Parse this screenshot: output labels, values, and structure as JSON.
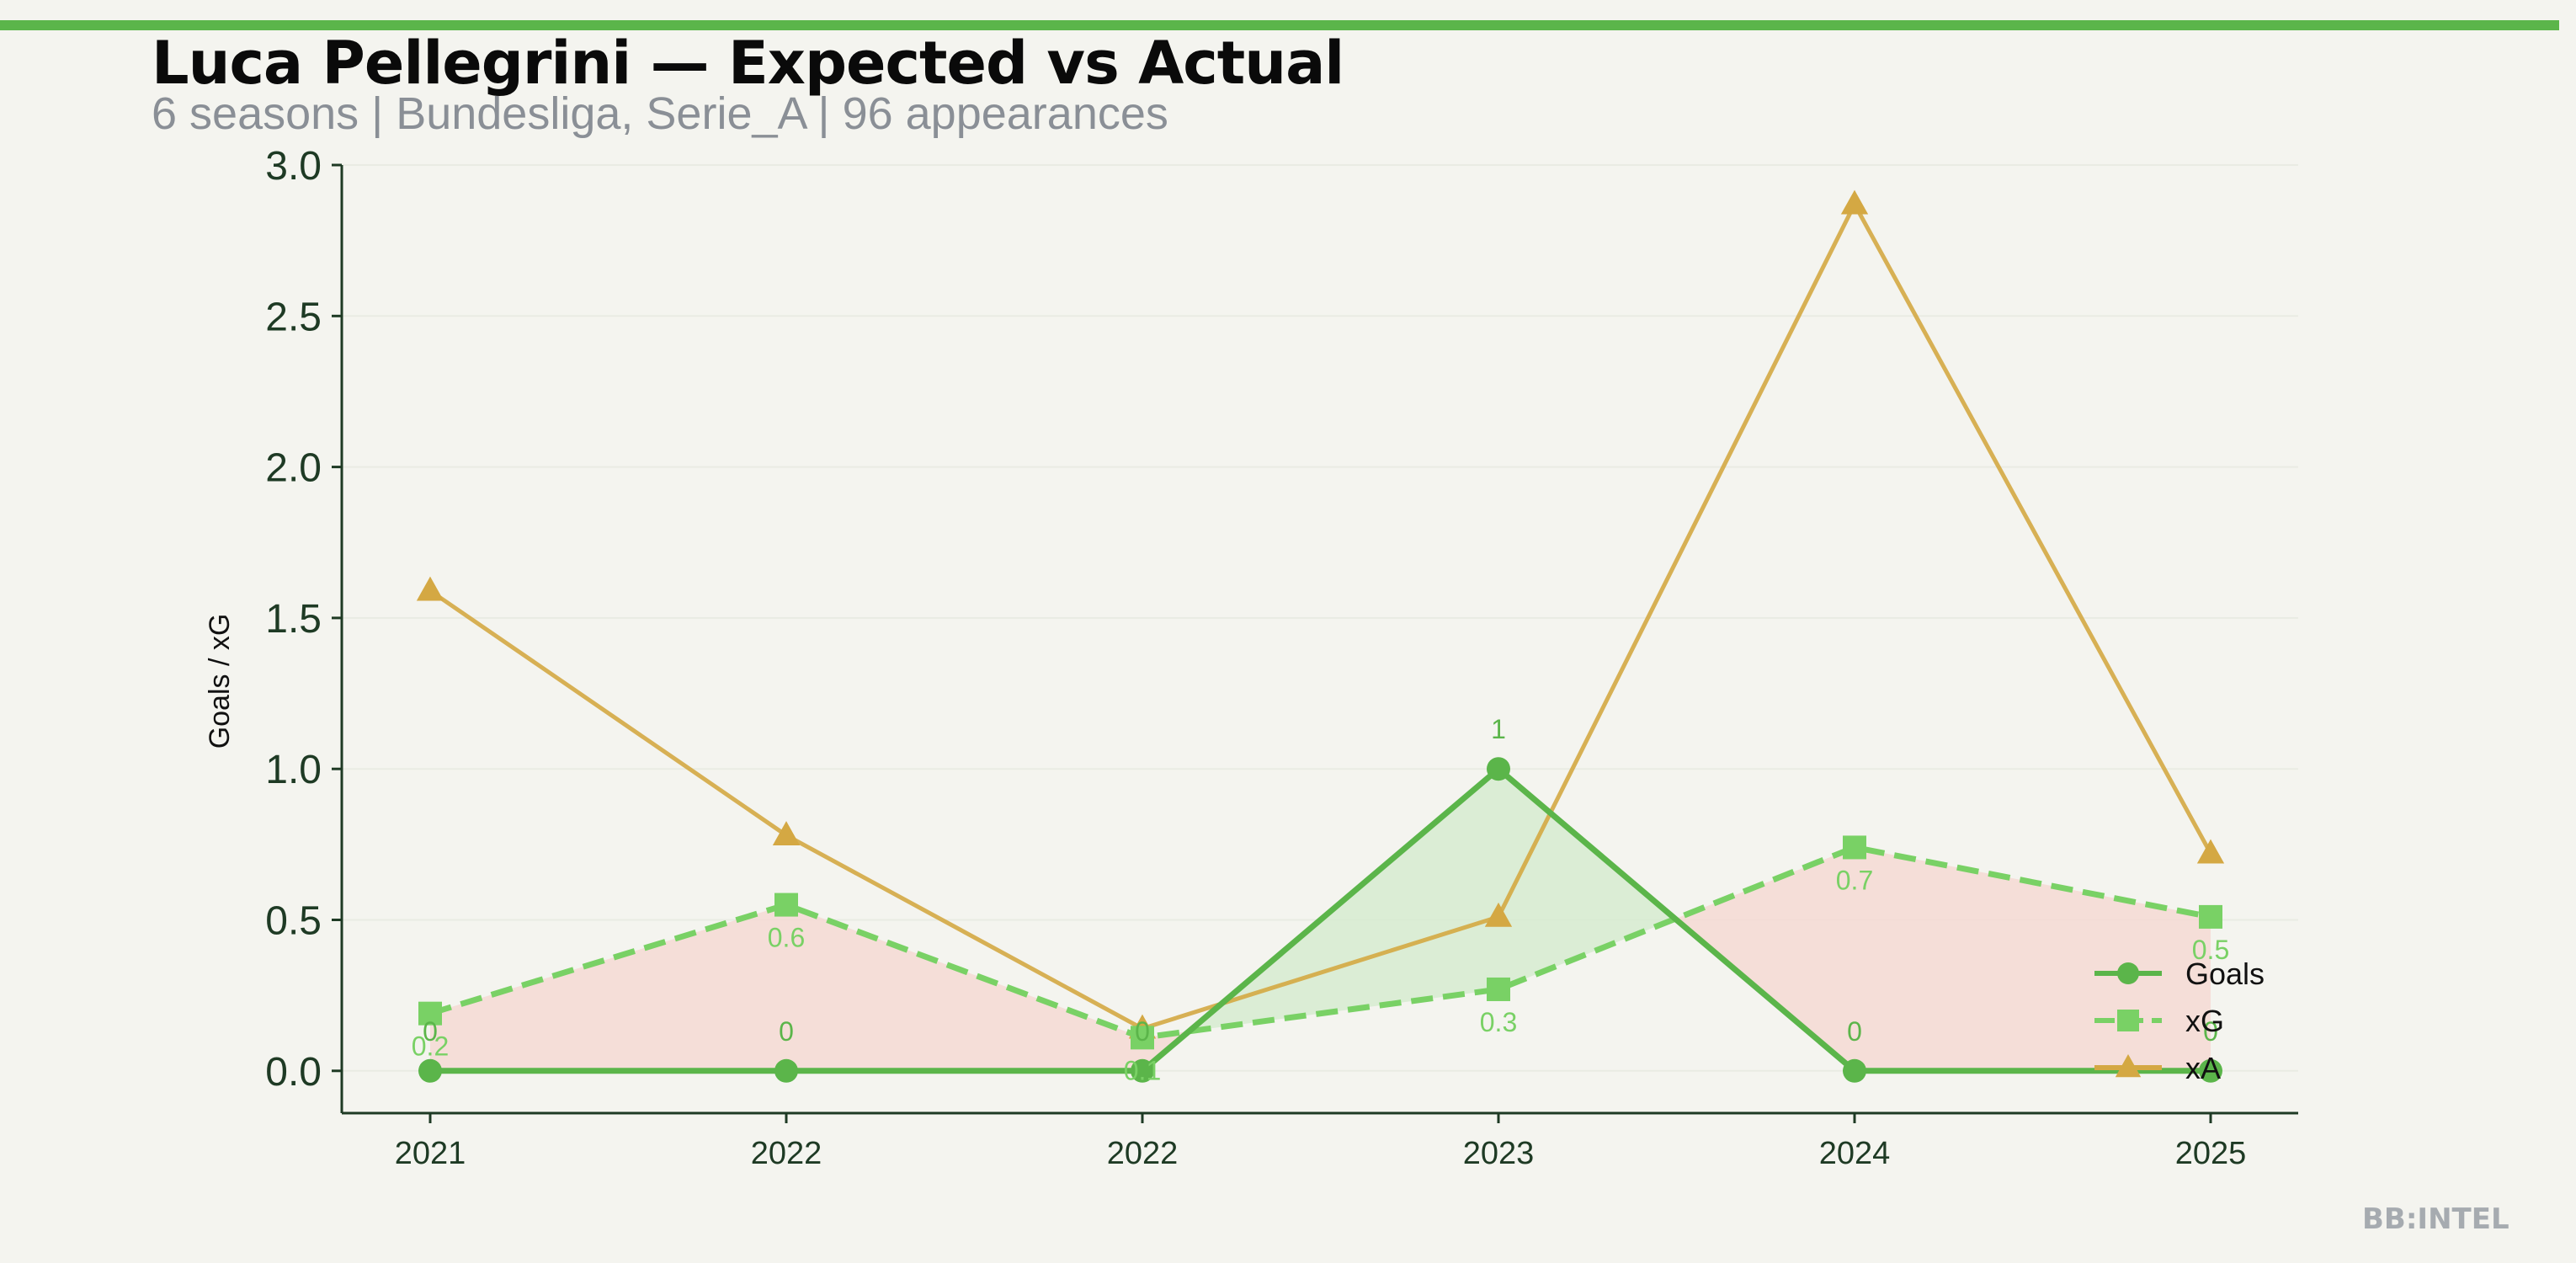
{
  "header": {
    "title": "Luca Pellegrini — Expected vs Actual",
    "subtitle": "6 seasons | Bundesliga, Serie_A | 96 appearances"
  },
  "footer": {
    "brand": "BB:INTEL"
  },
  "colors": {
    "background": "#f4f4ef",
    "accent": "#5bb54a",
    "goals": "#5bb54a",
    "xg": "#79d165",
    "xa": "#d4a843",
    "overperform_fill": "#d6ebd0",
    "underperform_fill": "#f5d9d3",
    "axis": "#1e3a24"
  },
  "chart_data": {
    "type": "line",
    "ylabel": "Goals / xG",
    "xlabel": "",
    "categories": [
      "2021",
      "2022",
      "2022",
      "2023",
      "2024",
      "2025"
    ],
    "ylim": [
      -0.14,
      3.0
    ],
    "yticks": [
      "0.0",
      "0.5",
      "1.0",
      "1.5",
      "2.0",
      "2.5",
      "3.0"
    ],
    "grid": true,
    "legend": {
      "position": "bottom-right",
      "entries": [
        "Goals",
        "xG",
        "xA"
      ]
    },
    "series": [
      {
        "name": "Goals",
        "values": [
          0,
          0,
          0,
          1,
          0,
          0
        ],
        "labels": [
          "0",
          "0",
          "0",
          "1",
          "0",
          "0"
        ]
      },
      {
        "name": "xG",
        "values": [
          0.19,
          0.55,
          0.11,
          0.27,
          0.74,
          0.51
        ],
        "labels": [
          "0.2",
          "0.6",
          "0.1",
          "0.3",
          "0.7",
          "0.5"
        ]
      },
      {
        "name": "xA",
        "values": [
          1.59,
          0.78,
          0.14,
          0.51,
          2.87,
          0.72
        ]
      }
    ]
  }
}
